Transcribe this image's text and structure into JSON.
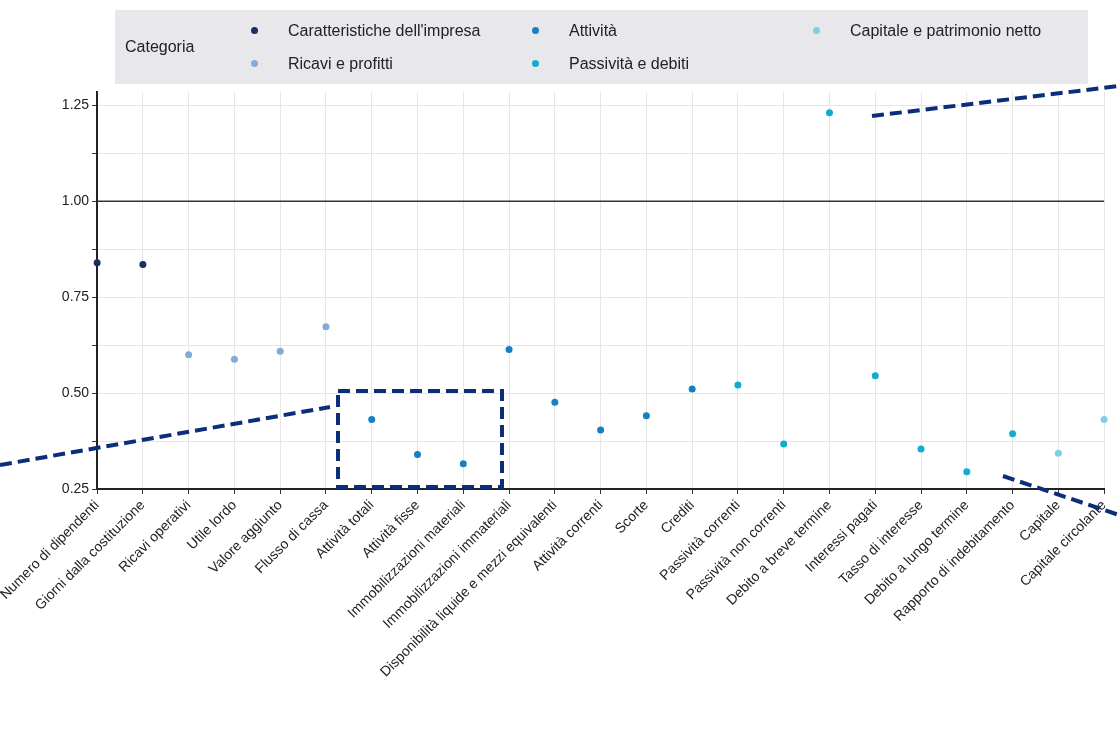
{
  "chart_data": {
    "type": "scatter",
    "legend_title": "Categoria",
    "legend": "top",
    "categories": [
      "Numero di dipendenti",
      "Giorni dalla costituzione",
      "Ricavi operativi",
      "Utile lordo",
      "Valore aggiunto",
      "Flusso di cassa",
      "Attività totali",
      "Attività fisse",
      "Immobilizzazioni materiali",
      "Immobilizzazioni immateriali",
      "Disponibilità liquide e mezzi equivalenti",
      "Attività correnti",
      "Scorte",
      "Crediti",
      "Passività correnti",
      "Passività non correnti",
      "Debito a breve termine",
      "Interessi pagati",
      "Tasso di interesse",
      "Debito a lungo termine",
      "Rapporto di indebitamento",
      "Capitale",
      "Capitale circolante"
    ],
    "series": [
      {
        "name": "Caratteristiche dell'impresa",
        "color": "#1b2f5e",
        "values": [
          0.84,
          0.835,
          null,
          null,
          null,
          null,
          null,
          null,
          null,
          null,
          null,
          null,
          null,
          null,
          null,
          null,
          null,
          null,
          null,
          null,
          null,
          null,
          null
        ]
      },
      {
        "name": "Ricavi e profitti",
        "color": "#86a9d9",
        "values": [
          null,
          null,
          0.6,
          0.588,
          0.609,
          0.673,
          null,
          null,
          null,
          null,
          null,
          null,
          null,
          null,
          null,
          null,
          null,
          null,
          null,
          null,
          null,
          null,
          null
        ]
      },
      {
        "name": "Attività",
        "color": "#1581c2",
        "values": [
          null,
          null,
          null,
          null,
          null,
          null,
          0.431,
          0.34,
          0.316,
          0.614,
          0.476,
          0.404,
          0.441,
          0.511,
          null,
          null,
          null,
          null,
          null,
          null,
          null,
          null,
          null
        ]
      },
      {
        "name": "Passività e debiti",
        "color": "#14abd1",
        "values": [
          null,
          null,
          null,
          null,
          null,
          null,
          null,
          null,
          null,
          null,
          null,
          null,
          null,
          null,
          0.521,
          0.367,
          1.231,
          0.545,
          0.354,
          0.295,
          0.394,
          null,
          null
        ]
      },
      {
        "name": "Capitale e patrimonio netto",
        "color": "#7fcfe4",
        "values": [
          null,
          null,
          null,
          null,
          null,
          null,
          null,
          null,
          null,
          null,
          null,
          null,
          null,
          null,
          null,
          null,
          null,
          null,
          null,
          null,
          null,
          0.343,
          0.431
        ]
      }
    ],
    "ylim": [
      0.25,
      1.285
    ],
    "yticks": [
      {
        "value": 0.25,
        "label": "0.25"
      },
      {
        "value": 0.375,
        "label": null
      },
      {
        "value": 0.5,
        "label": "0.50"
      },
      {
        "value": 0.625,
        "label": null
      },
      {
        "value": 0.75,
        "label": "0.75"
      },
      {
        "value": 0.875,
        "label": null
      },
      {
        "value": 1,
        "label": "1.00"
      },
      {
        "value": 1.125,
        "label": null
      },
      {
        "value": 1.25,
        "label": "1.25"
      }
    ],
    "grid": true,
    "marker": "circle",
    "ref_lines": [
      {
        "axis": "y",
        "value": 1,
        "color": "#333333"
      }
    ]
  }
}
